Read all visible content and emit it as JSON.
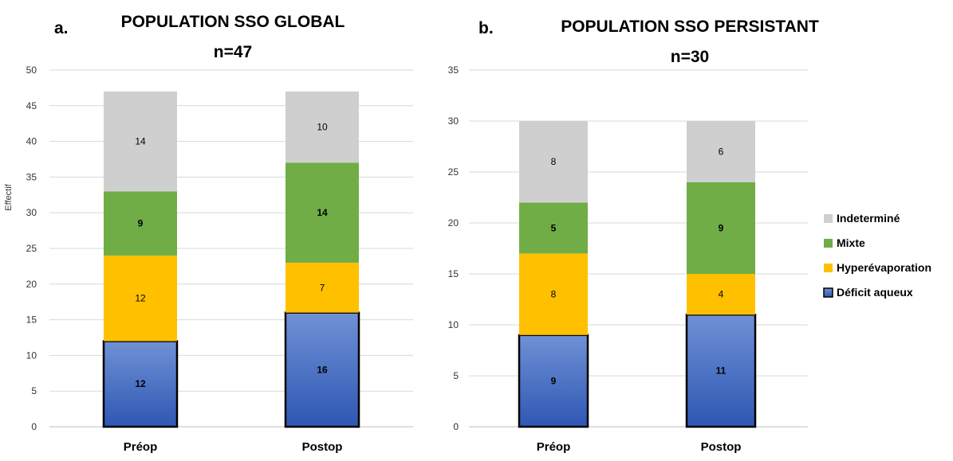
{
  "colors": {
    "deficit": "#4a72c4",
    "hyper": "#ffc000",
    "mixte": "#70ad47",
    "indetermine": "#d0cfcf"
  },
  "legend": [
    {
      "name": "Indeterminé",
      "color": "#d0cfcf"
    },
    {
      "name": "Mixte",
      "color": "#70ad47"
    },
    {
      "name": "Hyperévaporation",
      "color": "#ffc000"
    },
    {
      "name": "Déficit aqueux",
      "color": "#4a72c4"
    }
  ],
  "chart_data": [
    {
      "panel": "a.",
      "type": "bar",
      "stacked": true,
      "title": "POPULATION SSO GLOBAL",
      "subtitle": "n=47",
      "ylabel": "Effectif",
      "ylim": [
        0,
        50
      ],
      "yticks": [
        0,
        5,
        10,
        15,
        20,
        25,
        30,
        35,
        40,
        45,
        50
      ],
      "categories": [
        "Préop",
        "Postop"
      ],
      "series": [
        {
          "name": "Déficit aqueux",
          "values": [
            12,
            16
          ]
        },
        {
          "name": "Hyperévaporation",
          "values": [
            12,
            7
          ]
        },
        {
          "name": "Mixte",
          "values": [
            9,
            14
          ]
        },
        {
          "name": "Indeterminé",
          "values": [
            14,
            10
          ]
        }
      ]
    },
    {
      "panel": "b.",
      "type": "bar",
      "stacked": true,
      "title": "POPULATION SSO PERSISTANT",
      "subtitle": "n=30",
      "ylabel": "",
      "ylim": [
        0,
        35
      ],
      "yticks": [
        0,
        5,
        10,
        15,
        20,
        25,
        30,
        35
      ],
      "categories": [
        "Préop",
        "Postop"
      ],
      "series": [
        {
          "name": "Déficit aqueux",
          "values": [
            9,
            11
          ]
        },
        {
          "name": "Hyperévaporation",
          "values": [
            8,
            4
          ]
        },
        {
          "name": "Mixte",
          "values": [
            5,
            9
          ]
        },
        {
          "name": "Indeterminé",
          "values": [
            8,
            6
          ]
        }
      ]
    }
  ]
}
